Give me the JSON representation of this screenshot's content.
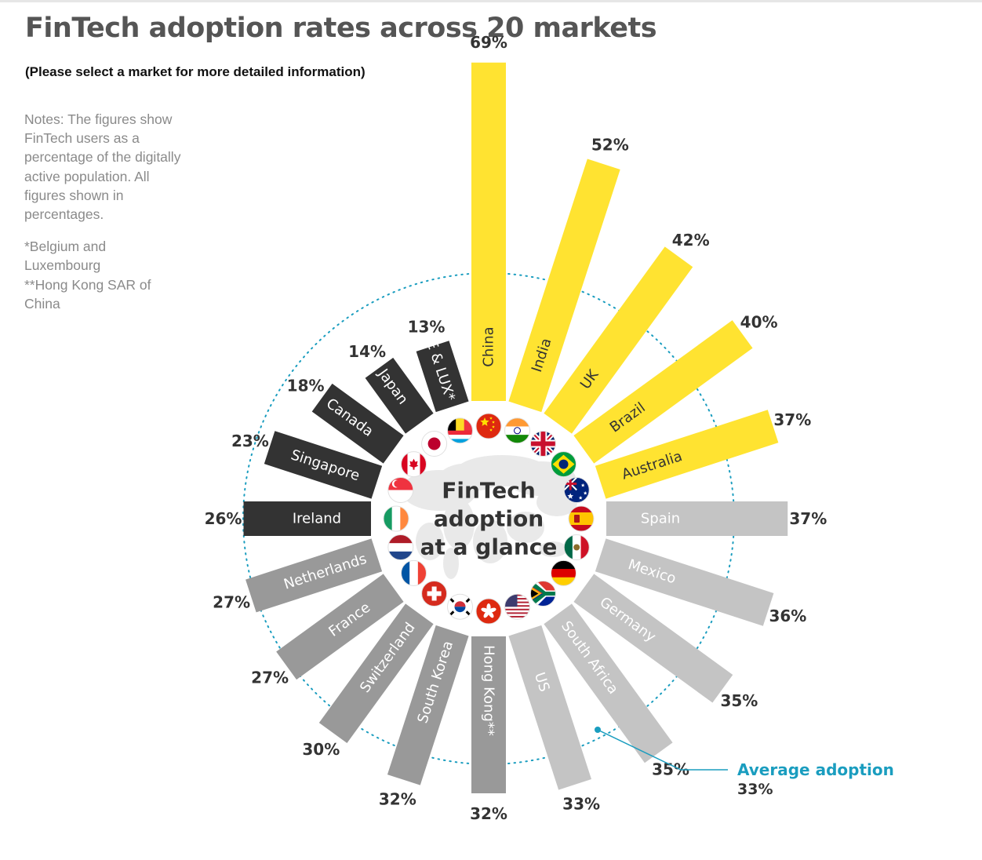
{
  "title": "FinTech adoption rates across 20 markets",
  "subtitle": "(Please select a market for more detailed information)",
  "notes": {
    "main": "Notes: The figures show FinTech users as a percentage of the digitally active population. All figures shown in percentages.",
    "footnote1": "*Belgium and Luxembourg",
    "footnote2": "**Hong Kong SAR of China"
  },
  "center_label": [
    "FinTech",
    "adoption",
    "at a glance"
  ],
  "average": {
    "label": "Average adoption",
    "value_text": "33%"
  },
  "colors": {
    "high": "#FFE331",
    "mid": "#C4C4C4",
    "low": "#999999",
    "dark": "#333333",
    "accent": "#1a9dbf"
  },
  "chart_data": {
    "type": "bar",
    "layout": "radial",
    "title": "FinTech adoption rates across 20 markets",
    "unit": "%",
    "average": 33,
    "series": [
      {
        "name": "FinTech adoption rate",
        "categories": [
          "China",
          "India",
          "UK",
          "Brazil",
          "Australia",
          "Spain",
          "Mexico",
          "Germany",
          "South Africa",
          "US",
          "Hong Kong**",
          "South Korea",
          "Switzerland",
          "France",
          "Netherlands",
          "Ireland",
          "Singapore",
          "Canada",
          "Japan",
          "BE & LUX*"
        ],
        "values": [
          69,
          52,
          42,
          40,
          37,
          37,
          36,
          35,
          35,
          33,
          32,
          32,
          30,
          27,
          27,
          26,
          23,
          18,
          14,
          13
        ]
      }
    ],
    "bars": [
      {
        "market": "China",
        "label": "China",
        "value": 69,
        "value_text": "69%",
        "group": "high",
        "flag": "china-flag"
      },
      {
        "market": "India",
        "label": "India",
        "value": 52,
        "value_text": "52%",
        "group": "high",
        "flag": "india-flag"
      },
      {
        "market": "UK",
        "label": "UK",
        "value": 42,
        "value_text": "42%",
        "group": "high",
        "flag": "uk-flag"
      },
      {
        "market": "Brazil",
        "label": "Brazil",
        "value": 40,
        "value_text": "40%",
        "group": "high",
        "flag": "brazil-flag"
      },
      {
        "market": "Australia",
        "label": "Australia",
        "value": 37,
        "value_text": "37%",
        "group": "high",
        "flag": "australia-flag"
      },
      {
        "market": "Spain",
        "label": "Spain",
        "value": 37,
        "value_text": "37%",
        "group": "mid",
        "flag": "spain-flag"
      },
      {
        "market": "Mexico",
        "label": "Mexico",
        "value": 36,
        "value_text": "36%",
        "group": "mid",
        "flag": "mexico-flag"
      },
      {
        "market": "Germany",
        "label": "Germany",
        "value": 35,
        "value_text": "35%",
        "group": "mid",
        "flag": "germany-flag"
      },
      {
        "market": "South Africa",
        "label": "South Africa",
        "value": 35,
        "value_text": "35%",
        "group": "mid",
        "flag": "south-africa-flag"
      },
      {
        "market": "US",
        "label": "US",
        "value": 33,
        "value_text": "33%",
        "group": "mid",
        "flag": "us-flag"
      },
      {
        "market": "Hong Kong",
        "label": "Hong Kong**",
        "value": 32,
        "value_text": "32%",
        "group": "low",
        "flag": "hong-kong-flag"
      },
      {
        "market": "South Korea",
        "label": "South Korea",
        "value": 32,
        "value_text": "32%",
        "group": "low",
        "flag": "south-korea-flag"
      },
      {
        "market": "Switzerland",
        "label": "Switzerland",
        "value": 30,
        "value_text": "30%",
        "group": "low",
        "flag": "switzerland-flag"
      },
      {
        "market": "France",
        "label": "France",
        "value": 27,
        "value_text": "27%",
        "group": "low",
        "flag": "france-flag"
      },
      {
        "market": "Netherlands",
        "label": "Netherlands",
        "value": 27,
        "value_text": "27%",
        "group": "low",
        "flag": "netherlands-flag"
      },
      {
        "market": "Ireland",
        "label": "Ireland",
        "value": 26,
        "value_text": "26%",
        "group": "dark",
        "flag": "ireland-flag"
      },
      {
        "market": "Singapore",
        "label": "Singapore",
        "value": 23,
        "value_text": "23%",
        "group": "dark",
        "flag": "singapore-flag"
      },
      {
        "market": "Canada",
        "label": "Canada",
        "value": 18,
        "value_text": "18%",
        "group": "dark",
        "flag": "canada-flag"
      },
      {
        "market": "Japan",
        "label": "Japan",
        "value": 14,
        "value_text": "14%",
        "group": "dark",
        "flag": "japan-flag"
      },
      {
        "market": "BE & LUX",
        "label": "BE & LUX*",
        "value": 13,
        "value_text": "13%",
        "group": "dark",
        "flag": "belgium-luxembourg-flag"
      }
    ]
  }
}
